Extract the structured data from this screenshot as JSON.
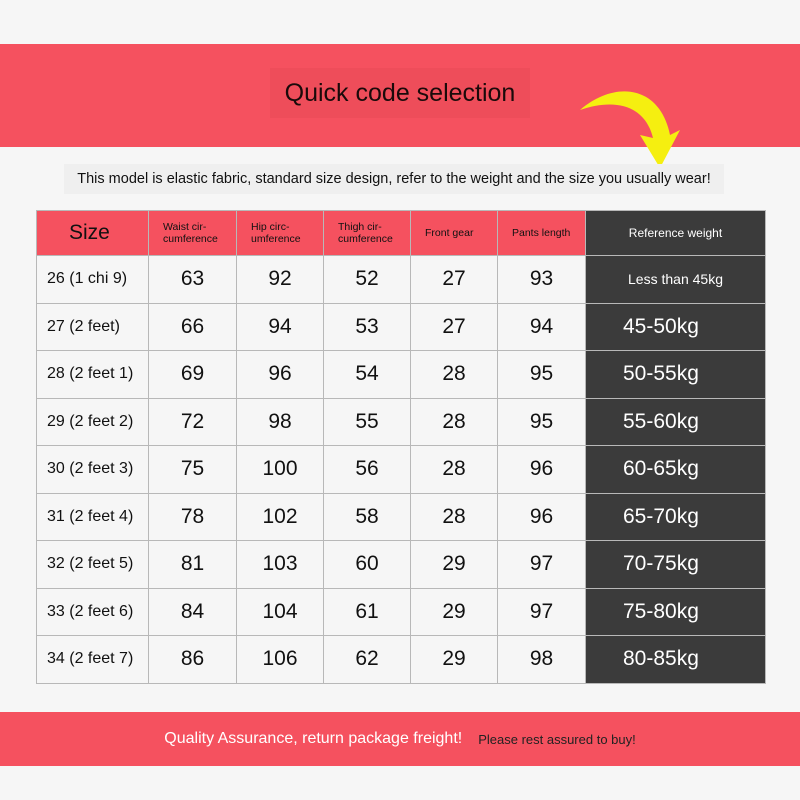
{
  "header": {
    "title": "Quick code selection",
    "accent": "#f5515f"
  },
  "subtitle": "This model is elastic fabric, standard size design, refer to the weight and the size you usually wear!",
  "table": {
    "columns": [
      "Size",
      "Waist cir-cumference",
      "Hip circ-umference",
      "Thigh cir-cumference",
      "Front gear",
      "Pants length",
      "Reference weight"
    ],
    "rows": [
      [
        "26 (1 chi 9)",
        "63",
        "92",
        "52",
        "27",
        "93",
        "Less than 45kg"
      ],
      [
        "27 (2 feet)",
        "66",
        "94",
        "53",
        "27",
        "94",
        "45-50kg"
      ],
      [
        "28 (2 feet 1)",
        "69",
        "96",
        "54",
        "28",
        "95",
        "50-55kg"
      ],
      [
        "29 (2 feet 2)",
        "72",
        "98",
        "55",
        "28",
        "95",
        "55-60kg"
      ],
      [
        "30 (2 feet 3)",
        "75",
        "100",
        "56",
        "28",
        "96",
        "60-65kg"
      ],
      [
        "31 (2 feet 4)",
        "78",
        "102",
        "58",
        "28",
        "96",
        "65-70kg"
      ],
      [
        "32 (2 feet 5)",
        "81",
        "103",
        "60",
        "29",
        "97",
        "70-75kg"
      ],
      [
        "33 (2 feet 6)",
        "84",
        "104",
        "61",
        "29",
        "97",
        "75-80kg"
      ],
      [
        "34 (2 feet 7)",
        "86",
        "106",
        "62",
        "29",
        "98",
        "80-85kg"
      ]
    ]
  },
  "footer": {
    "main": "Quality Assurance, return package freight!",
    "secondary": "Please rest assured to buy!"
  }
}
